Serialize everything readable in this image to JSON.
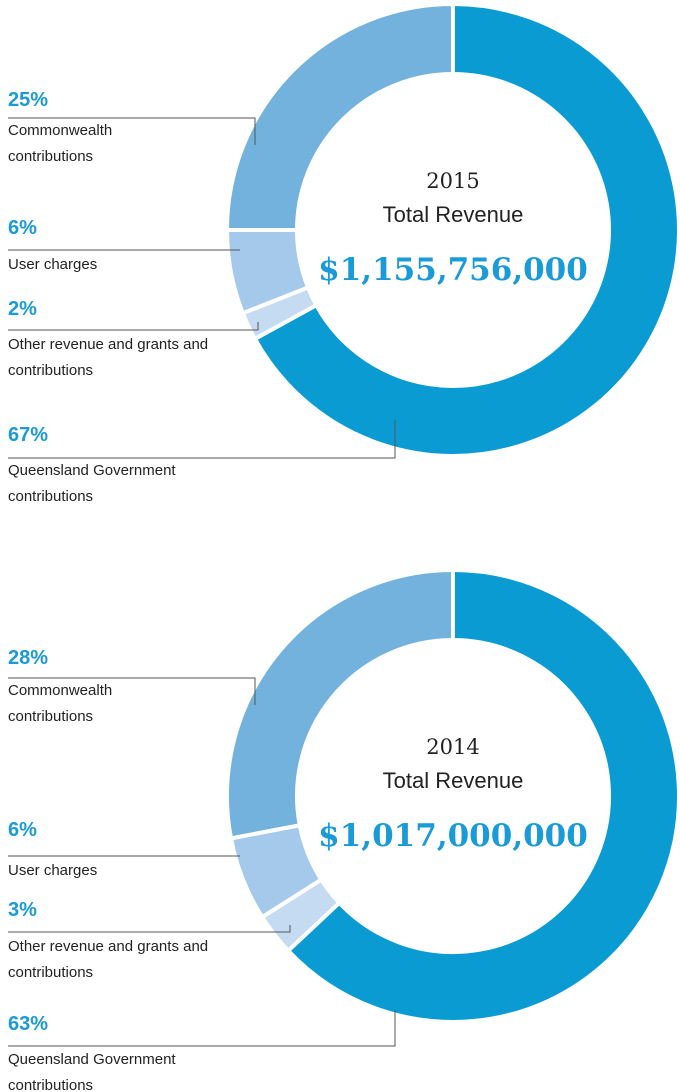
{
  "chart_data": [
    {
      "type": "pie",
      "year": "2015",
      "title": "Total Revenue",
      "total": "$1,155,756,000",
      "categories": [
        "Queensland Government contributions",
        "Other revenue and grants and contributions",
        "User charges",
        "Commonwealth contributions"
      ],
      "values": [
        67,
        2,
        6,
        25
      ],
      "value_labels": [
        "67%",
        "2%",
        "6%",
        "25%"
      ],
      "colors": [
        "#0a9bd3",
        "#c4dbf1",
        "#a4c9ea",
        "#72b2dc"
      ]
    },
    {
      "type": "pie",
      "year": "2014",
      "title": "Total Revenue",
      "total": "$1,017,000,000",
      "categories": [
        "Queensland Government contributions",
        "Other revenue and grants and contributions",
        "User charges",
        "Commonwealth contributions"
      ],
      "values": [
        63,
        3,
        6,
        28
      ],
      "value_labels": [
        "63%",
        "3%",
        "6%",
        "28%"
      ],
      "colors": [
        "#0a9bd3",
        "#c4dbf1",
        "#a4c9ea",
        "#72b2dc"
      ]
    }
  ]
}
